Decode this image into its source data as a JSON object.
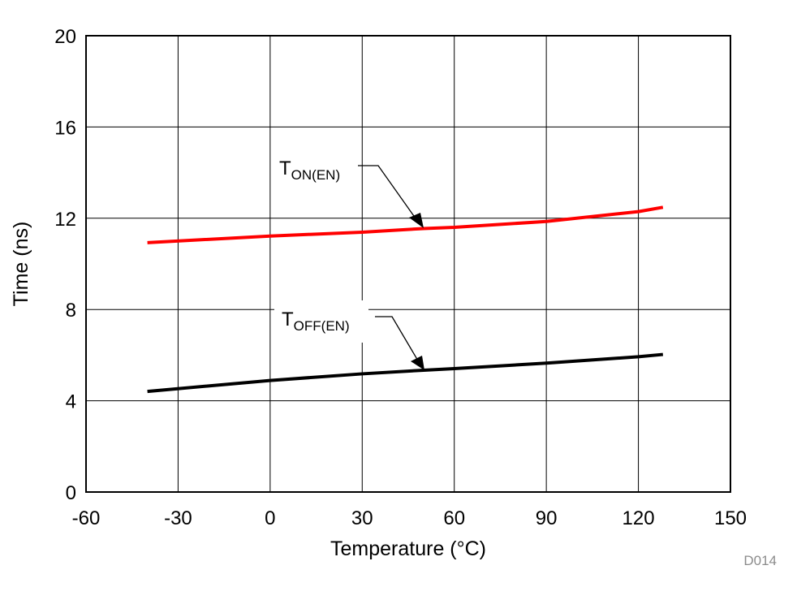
{
  "chart_data": {
    "type": "line",
    "title": "",
    "xlabel": "Temperature (°C)",
    "ylabel": "Time (ns)",
    "xlim": [
      -60,
      150
    ],
    "ylim": [
      0,
      20
    ],
    "xticks": [
      -60,
      -30,
      0,
      30,
      60,
      90,
      120,
      150
    ],
    "yticks": [
      0,
      4,
      8,
      12,
      16,
      20
    ],
    "grid": true,
    "series": [
      {
        "name": "TON(EN)",
        "label_main": "T",
        "label_sub": "ON(EN)",
        "color": "#ff0000",
        "x": [
          -40,
          0,
          30,
          50,
          60,
          90,
          120,
          128
        ],
        "y": [
          10.93,
          11.22,
          11.39,
          11.55,
          11.6,
          11.86,
          12.29,
          12.48
        ]
      },
      {
        "name": "TOFF(EN)",
        "label_main": "T",
        "label_sub": "OFF(EN)",
        "color": "#000000",
        "x": [
          -40,
          0,
          30,
          50,
          60,
          90,
          120,
          128
        ],
        "y": [
          4.41,
          4.89,
          5.18,
          5.34,
          5.41,
          5.65,
          5.93,
          6.03
        ]
      }
    ],
    "watermark": "D014"
  }
}
